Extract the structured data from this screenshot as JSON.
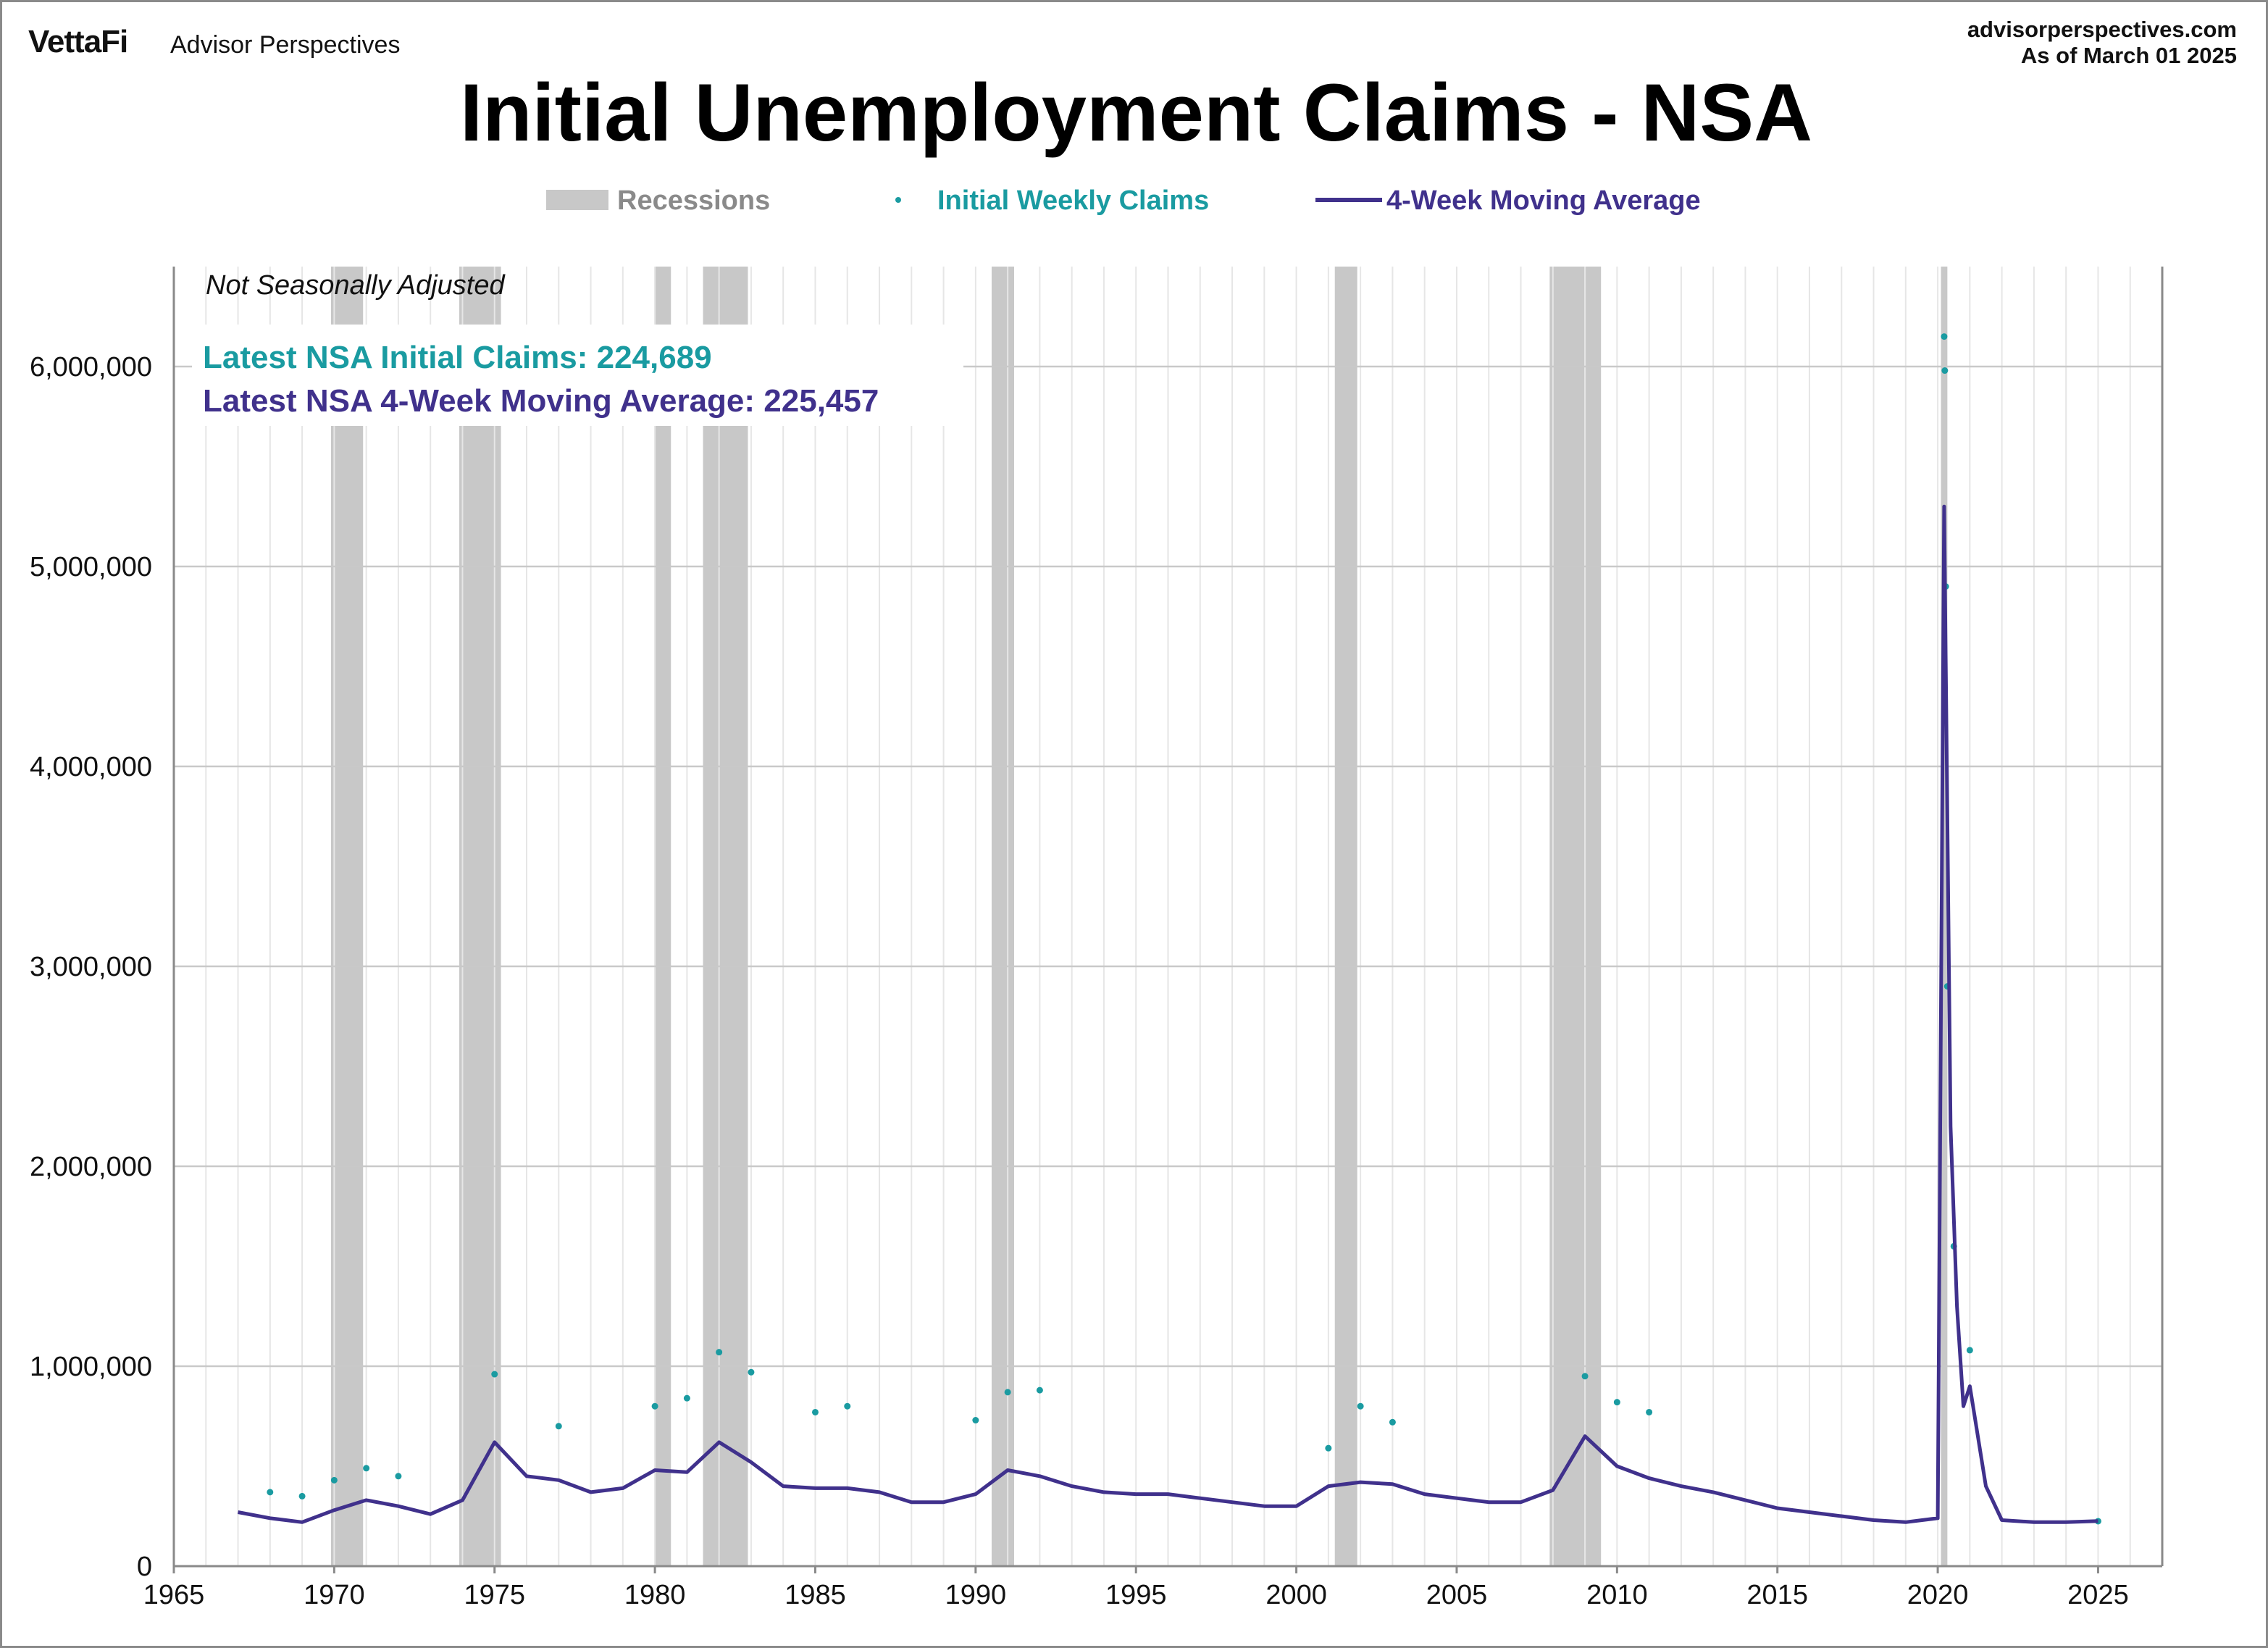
{
  "header": {
    "logo_text": "VettaFi",
    "brand_name": "Advisor Perspectives",
    "site": "advisorperspectives.com",
    "as_of": "As of March 01 2025"
  },
  "colors": {
    "claims": "#1a9ba1",
    "moving_average": "#40318c",
    "recession": "#c8c8c8",
    "grid": "#c9c9c9"
  },
  "chart_data": {
    "type": "line",
    "title": "Initial Unemployment Claims - NSA",
    "note": "Not Seasonally Adjusted",
    "latest": {
      "claims_label": "Latest NSA Initial Claims: 224,689",
      "ma_label": "Latest NSA 4-Week Moving Average: 225,457"
    },
    "legend": {
      "placement": "top-center",
      "recessions": "Recessions",
      "claims": "Initial Weekly Claims",
      "moving_average": "4-Week Moving Average"
    },
    "xlim": [
      1965,
      2027
    ],
    "ylim": [
      0,
      6500000
    ],
    "x_ticks": [
      1965,
      1970,
      1975,
      1980,
      1985,
      1990,
      1995,
      2000,
      2005,
      2010,
      2015,
      2020,
      2025
    ],
    "y_ticks": [
      0,
      1000000,
      2000000,
      3000000,
      4000000,
      5000000,
      6000000
    ],
    "y_tick_labels": [
      "0",
      "1,000,000",
      "2,000,000",
      "3,000,000",
      "4,000,000",
      "5,000,000",
      "6,000,000"
    ],
    "grid": true,
    "recessions": [
      [
        1969.9,
        1970.9
      ],
      [
        1973.9,
        1975.2
      ],
      [
        1980.0,
        1980.5
      ],
      [
        1981.5,
        1982.9
      ],
      [
        1990.5,
        1991.2
      ],
      [
        2001.2,
        2001.9
      ],
      [
        2007.9,
        2009.5
      ],
      [
        2020.1,
        2020.3
      ]
    ],
    "series": [
      {
        "name": "4-Week Moving Average",
        "points": [
          [
            1967.0,
            270000
          ],
          [
            1968.0,
            240000
          ],
          [
            1969.0,
            220000
          ],
          [
            1970.0,
            280000
          ],
          [
            1971.0,
            330000
          ],
          [
            1972.0,
            300000
          ],
          [
            1973.0,
            260000
          ],
          [
            1974.0,
            330000
          ],
          [
            1975.0,
            620000
          ],
          [
            1976.0,
            450000
          ],
          [
            1977.0,
            430000
          ],
          [
            1978.0,
            370000
          ],
          [
            1979.0,
            390000
          ],
          [
            1980.0,
            480000
          ],
          [
            1981.0,
            470000
          ],
          [
            1982.0,
            620000
          ],
          [
            1983.0,
            520000
          ],
          [
            1984.0,
            400000
          ],
          [
            1985.0,
            390000
          ],
          [
            1986.0,
            390000
          ],
          [
            1987.0,
            370000
          ],
          [
            1988.0,
            320000
          ],
          [
            1989.0,
            320000
          ],
          [
            1990.0,
            360000
          ],
          [
            1991.0,
            480000
          ],
          [
            1992.0,
            450000
          ],
          [
            1993.0,
            400000
          ],
          [
            1994.0,
            370000
          ],
          [
            1995.0,
            360000
          ],
          [
            1996.0,
            360000
          ],
          [
            1997.0,
            340000
          ],
          [
            1998.0,
            320000
          ],
          [
            1999.0,
            300000
          ],
          [
            2000.0,
            300000
          ],
          [
            2001.0,
            400000
          ],
          [
            2002.0,
            420000
          ],
          [
            2003.0,
            410000
          ],
          [
            2004.0,
            360000
          ],
          [
            2005.0,
            340000
          ],
          [
            2006.0,
            320000
          ],
          [
            2007.0,
            320000
          ],
          [
            2008.0,
            380000
          ],
          [
            2009.0,
            650000
          ],
          [
            2010.0,
            500000
          ],
          [
            2011.0,
            440000
          ],
          [
            2012.0,
            400000
          ],
          [
            2013.0,
            370000
          ],
          [
            2014.0,
            330000
          ],
          [
            2015.0,
            290000
          ],
          [
            2016.0,
            270000
          ],
          [
            2017.0,
            250000
          ],
          [
            2018.0,
            230000
          ],
          [
            2019.0,
            220000
          ],
          [
            2020.0,
            240000
          ],
          [
            2020.2,
            5300000
          ],
          [
            2020.4,
            2200000
          ],
          [
            2020.6,
            1300000
          ],
          [
            2020.8,
            800000
          ],
          [
            2021.0,
            900000
          ],
          [
            2021.5,
            400000
          ],
          [
            2022.0,
            230000
          ],
          [
            2023.0,
            220000
          ],
          [
            2024.0,
            220000
          ],
          [
            2025.0,
            225457
          ]
        ]
      },
      {
        "name": "Initial Weekly Claims",
        "points": [
          [
            1968.0,
            370000
          ],
          [
            1969.0,
            350000
          ],
          [
            1970.0,
            430000
          ],
          [
            1971.0,
            490000
          ],
          [
            1972.0,
            450000
          ],
          [
            1975.0,
            960000
          ],
          [
            1977.0,
            700000
          ],
          [
            1980.0,
            800000
          ],
          [
            1981.0,
            840000
          ],
          [
            1982.0,
            1070000
          ],
          [
            1983.0,
            970000
          ],
          [
            1985.0,
            770000
          ],
          [
            1986.0,
            800000
          ],
          [
            1990.0,
            730000
          ],
          [
            1991.0,
            870000
          ],
          [
            1992.0,
            880000
          ],
          [
            2001.0,
            590000
          ],
          [
            2002.0,
            800000
          ],
          [
            2003.0,
            720000
          ],
          [
            2009.0,
            950000
          ],
          [
            2010.0,
            820000
          ],
          [
            2011.0,
            770000
          ],
          [
            2020.2,
            6150000
          ],
          [
            2020.22,
            5980000
          ],
          [
            2020.25,
            4900000
          ],
          [
            2020.3,
            2900000
          ],
          [
            2020.5,
            1600000
          ],
          [
            2021.0,
            1080000
          ],
          [
            2025.0,
            224689
          ]
        ]
      }
    ]
  }
}
